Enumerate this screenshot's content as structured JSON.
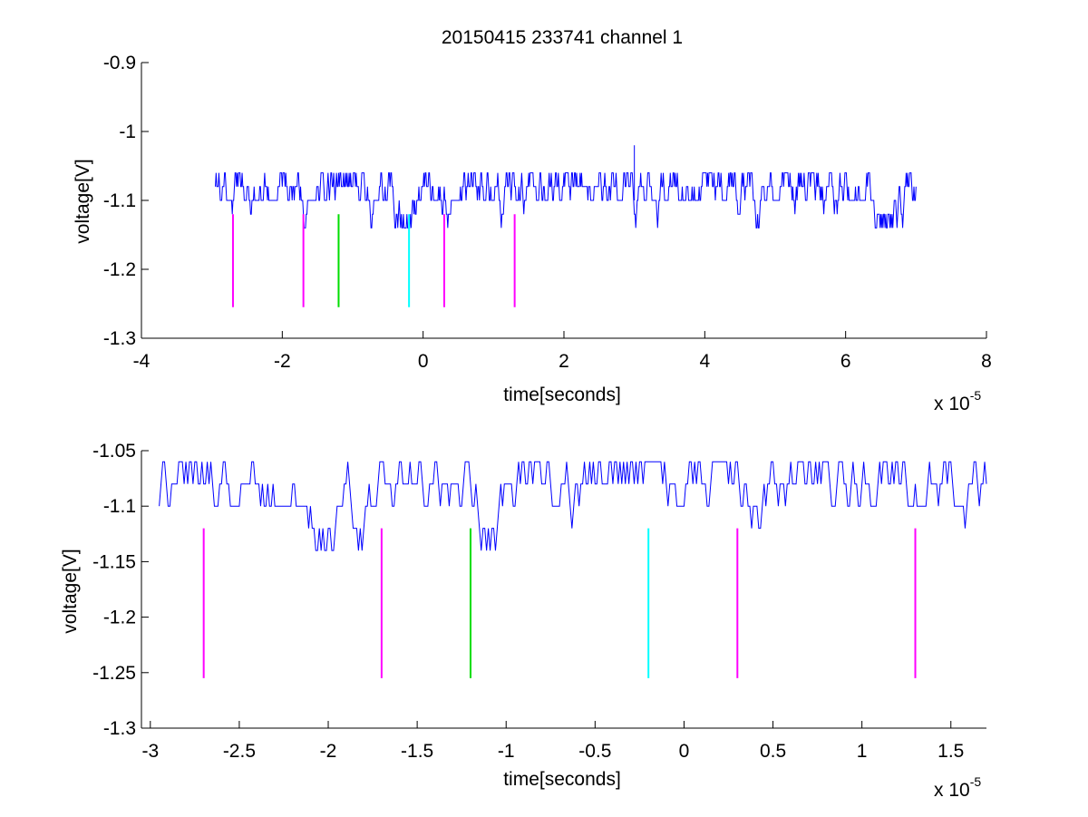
{
  "colors": {
    "trace": "#0000ff",
    "magenta": "#ff00ff",
    "green": "#00dd00",
    "cyan": "#00ffff",
    "background": "#ffffff",
    "axes": "#000000"
  },
  "chart_data": [
    {
      "type": "line",
      "title": "20150415 233741 channel 1",
      "xlabel": "time[seconds]",
      "ylabel": "voltage[V]",
      "x_exponent_label": "x 10",
      "x_exponent_power": "-5",
      "xlim": [
        -4e-05,
        8e-05
      ],
      "ylim": [
        -1.3,
        -0.9
      ],
      "x_ticks": [
        -4e-05,
        -2e-05,
        0,
        2e-05,
        4e-05,
        6e-05,
        8e-05
      ],
      "x_tick_labels": [
        "-4",
        "-2",
        "0",
        "2",
        "4",
        "6",
        "8"
      ],
      "y_ticks": [
        -1.3,
        -1.2,
        -1.1,
        -1.0,
        -0.9
      ],
      "y_tick_labels": [
        "-1.3",
        "-1.2",
        "-1.1",
        "-1",
        "-0.9"
      ],
      "grid": false,
      "legend": "none",
      "series": [
        {
          "color": "#0000ff",
          "x_range": [
            -2.95e-05,
            7e-05
          ],
          "levels": [
            -1.06,
            -1.08,
            -1.1,
            -1.12,
            -1.14
          ],
          "baseline": -1.1,
          "spike": {
            "x": 3e-05,
            "y": -1.02
          }
        }
      ],
      "markers": [
        {
          "x": -2.7e-05,
          "y_top": -1.12,
          "y_bottom": -1.255,
          "color": "#ff00ff"
        },
        {
          "x": -1.7e-05,
          "y_top": -1.12,
          "y_bottom": -1.255,
          "color": "#ff00ff"
        },
        {
          "x": -1.2e-05,
          "y_top": -1.12,
          "y_bottom": -1.255,
          "color": "#00dd00"
        },
        {
          "x": -2e-06,
          "y_top": -1.12,
          "y_bottom": -1.255,
          "color": "#00ffff"
        },
        {
          "x": 3e-06,
          "y_top": -1.12,
          "y_bottom": -1.255,
          "color": "#ff00ff"
        },
        {
          "x": 1.3e-05,
          "y_top": -1.12,
          "y_bottom": -1.255,
          "color": "#ff00ff"
        }
      ]
    },
    {
      "type": "line",
      "title": "",
      "xlabel": "time[seconds]",
      "ylabel": "voltage[V]",
      "x_exponent_label": "x 10",
      "x_exponent_power": "-5",
      "xlim": [
        -3.05e-05,
        1.7e-05
      ],
      "ylim": [
        -1.3,
        -1.05
      ],
      "x_ticks": [
        -3e-05,
        -2.5e-05,
        -2e-05,
        -1.5e-05,
        -1e-05,
        -5e-06,
        0,
        5e-06,
        1e-05,
        1.5e-05
      ],
      "x_tick_labels": [
        "-3",
        "-2.5",
        "-2",
        "-1.5",
        "-1",
        "-0.5",
        "0",
        "0.5",
        "1",
        "1.5"
      ],
      "y_ticks": [
        -1.3,
        -1.25,
        -1.2,
        -1.15,
        -1.1,
        -1.05
      ],
      "y_tick_labels": [
        "-1.3",
        "-1.25",
        "-1.2",
        "-1.15",
        "-1.1",
        "-1.05"
      ],
      "grid": false,
      "legend": "none",
      "series": [
        {
          "color": "#0000ff",
          "x_range": [
            -2.95e-05,
            1.7e-05
          ],
          "levels": [
            -1.06,
            -1.08,
            -1.1,
            -1.12,
            -1.14
          ],
          "baseline": -1.1
        }
      ],
      "markers": [
        {
          "x": -2.7e-05,
          "y_top": -1.12,
          "y_bottom": -1.255,
          "color": "#ff00ff"
        },
        {
          "x": -1.7e-05,
          "y_top": -1.12,
          "y_bottom": -1.255,
          "color": "#ff00ff"
        },
        {
          "x": -1.2e-05,
          "y_top": -1.12,
          "y_bottom": -1.255,
          "color": "#00dd00"
        },
        {
          "x": -2e-06,
          "y_top": -1.12,
          "y_bottom": -1.255,
          "color": "#00ffff"
        },
        {
          "x": 3e-06,
          "y_top": -1.12,
          "y_bottom": -1.255,
          "color": "#ff00ff"
        },
        {
          "x": 1.3e-05,
          "y_top": -1.12,
          "y_bottom": -1.255,
          "color": "#ff00ff"
        }
      ]
    }
  ]
}
